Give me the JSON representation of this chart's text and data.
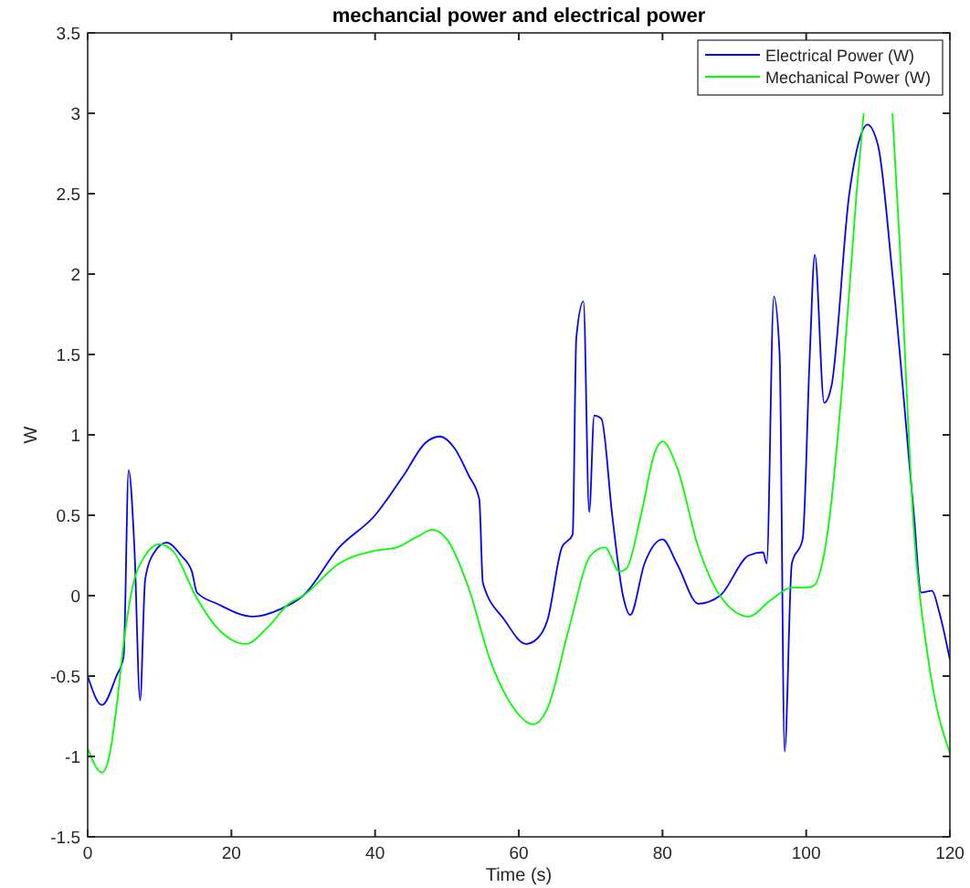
{
  "chart_data": {
    "type": "line",
    "title": "mechancial power and electrical power",
    "xlabel": "Time (s)",
    "ylabel": "W",
    "xlim": [
      0,
      120
    ],
    "ylim": [
      -1.5,
      3.5
    ],
    "xticks": [
      0,
      20,
      40,
      60,
      80,
      100,
      120
    ],
    "yticks": [
      -1.5,
      -1,
      -0.5,
      0,
      0.5,
      1,
      1.5,
      2,
      2.5,
      3,
      3.5
    ],
    "legend": "top right",
    "grid": false,
    "series": [
      {
        "name": "Electrical Power (W)",
        "color": "#0000ff",
        "x": [
          0,
          2,
          4,
          5,
          5.7,
          6.5,
          7.3,
          8,
          9,
          11,
          13,
          14.5,
          15.2,
          18,
          23,
          27,
          30,
          35,
          40,
          44,
          47,
          49,
          51,
          53,
          54.5,
          55,
          58,
          61,
          62.5,
          64,
          66,
          67.5,
          68,
          69,
          69.8,
          70.5,
          71.5,
          73,
          74.5,
          75.5,
          77.5,
          80,
          82,
          85,
          88,
          92,
          94,
          94.5,
          95.5,
          96.3,
          97,
          98,
          99.5,
          100.5,
          101.2,
          102.5,
          103.5,
          106,
          107.5,
          108.5,
          110,
          112,
          115,
          116,
          117.5,
          118.5,
          120
        ],
        "values": [
          -0.5,
          -0.68,
          -0.5,
          -0.38,
          0.78,
          0.3,
          -0.65,
          0.1,
          0.25,
          0.33,
          0.25,
          0.15,
          0.02,
          -0.05,
          -0.13,
          -0.08,
          0,
          0.3,
          0.5,
          0.75,
          0.95,
          0.99,
          0.92,
          0.75,
          0.6,
          0.08,
          -0.15,
          -0.3,
          -0.27,
          -0.15,
          0.3,
          0.38,
          1.6,
          1.83,
          0.52,
          1.12,
          1.1,
          0.5,
          0,
          -0.12,
          0.2,
          0.35,
          0.2,
          -0.05,
          0,
          0.25,
          0.27,
          0.2,
          1.86,
          1.5,
          -0.97,
          0.2,
          0.35,
          1.5,
          2.12,
          1.2,
          1.3,
          2.5,
          2.85,
          2.93,
          2.8,
          2,
          0.5,
          0.02,
          0.03,
          -0.1,
          -0.4
        ]
      },
      {
        "name": "Mechanical Power (W)",
        "color": "#00ff00",
        "x": [
          0,
          2,
          3,
          4,
          5,
          6,
          8,
          10,
          12,
          15,
          18,
          22,
          25,
          28,
          30,
          35,
          40,
          43,
          46,
          48,
          50,
          53,
          56,
          59,
          62,
          64,
          67,
          70,
          72,
          74,
          75,
          77,
          79,
          80,
          82,
          85,
          88,
          92,
          95,
          98,
          100,
          101,
          103,
          105,
          107,
          108,
          109,
          110,
          111,
          112,
          113,
          115,
          117,
          120
        ],
        "values": [
          -0.95,
          -1.1,
          -1.0,
          -0.7,
          -0.3,
          0,
          0.25,
          0.32,
          0.27,
          0,
          -0.2,
          -0.3,
          -0.2,
          -0.05,
          0,
          0.2,
          0.28,
          0.3,
          0.37,
          0.41,
          0.35,
          0.05,
          -0.4,
          -0.68,
          -0.8,
          -0.7,
          -0.2,
          0.25,
          0.3,
          0.15,
          0.17,
          0.5,
          0.9,
          0.96,
          0.8,
          0.3,
          0,
          -0.13,
          -0.03,
          0.05,
          0.05,
          0.06,
          0.4,
          1.3,
          2.5,
          3.0,
          null,
          null,
          null,
          3.0,
          2.2,
          0.4,
          -0.4,
          -0.98
        ]
      }
    ]
  }
}
